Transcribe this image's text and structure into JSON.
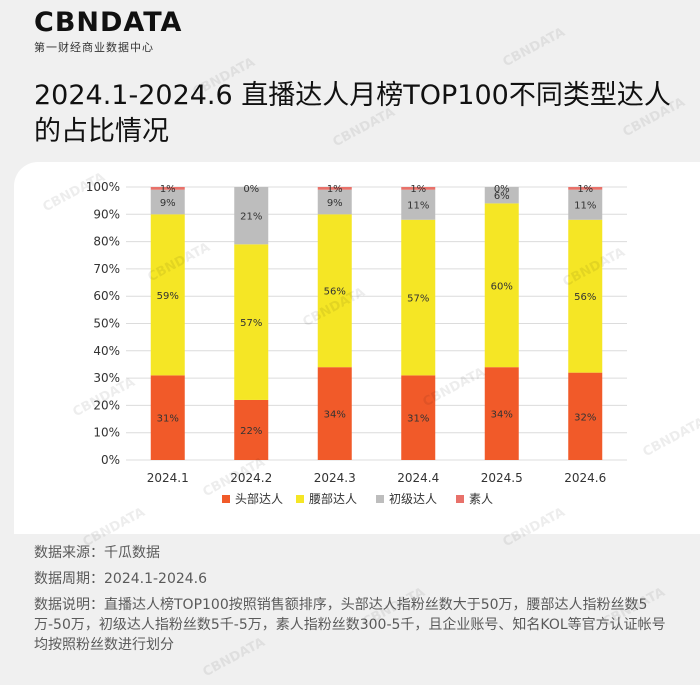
{
  "header": {
    "logo_text": "CBNDATA",
    "logo_subtitle": "第一财经商业数据中心",
    "title": "2024.1-2024.6 直播达人月榜TOP100不同类型达人的占比情况"
  },
  "chart_data": {
    "type": "bar",
    "stacked": true,
    "categories": [
      "2024.1",
      "2024.2",
      "2024.3",
      "2024.4",
      "2024.5",
      "2024.6"
    ],
    "series": [
      {
        "name": "头部达人",
        "color": "#f15a29",
        "values": [
          31,
          22,
          34,
          31,
          34,
          32
        ]
      },
      {
        "name": "腰部达人",
        "color": "#f5e625",
        "values": [
          59,
          57,
          56,
          57,
          60,
          56
        ]
      },
      {
        "name": "初级达人",
        "color": "#bdbdbd",
        "values": [
          9,
          21,
          9,
          11,
          6,
          11
        ]
      },
      {
        "name": "素人",
        "color": "#e8716a",
        "values": [
          1,
          0,
          1,
          1,
          0,
          1
        ]
      }
    ],
    "yticks": [
      "0%",
      "10%",
      "20%",
      "30%",
      "40%",
      "50%",
      "60%",
      "70%",
      "80%",
      "90%",
      "100%"
    ],
    "ylim": [
      0,
      100
    ],
    "value_suffix": "%",
    "grid": true,
    "legend_position": "bottom"
  },
  "footer": {
    "source": "数据来源：千瓜数据",
    "period": "数据周期：2024.1-2024.6",
    "note": "数据说明：直播达人榜TOP100按照销售额排序，头部达人指粉丝数大于50万，腰部达人指粉丝数5万-50万，初级达人指粉丝数5千-5万，素人指粉丝数300-5千，且企业账号、知名KOL等官方认证帐号均按照粉丝数进行划分"
  },
  "watermark_text": "CBNDATA"
}
